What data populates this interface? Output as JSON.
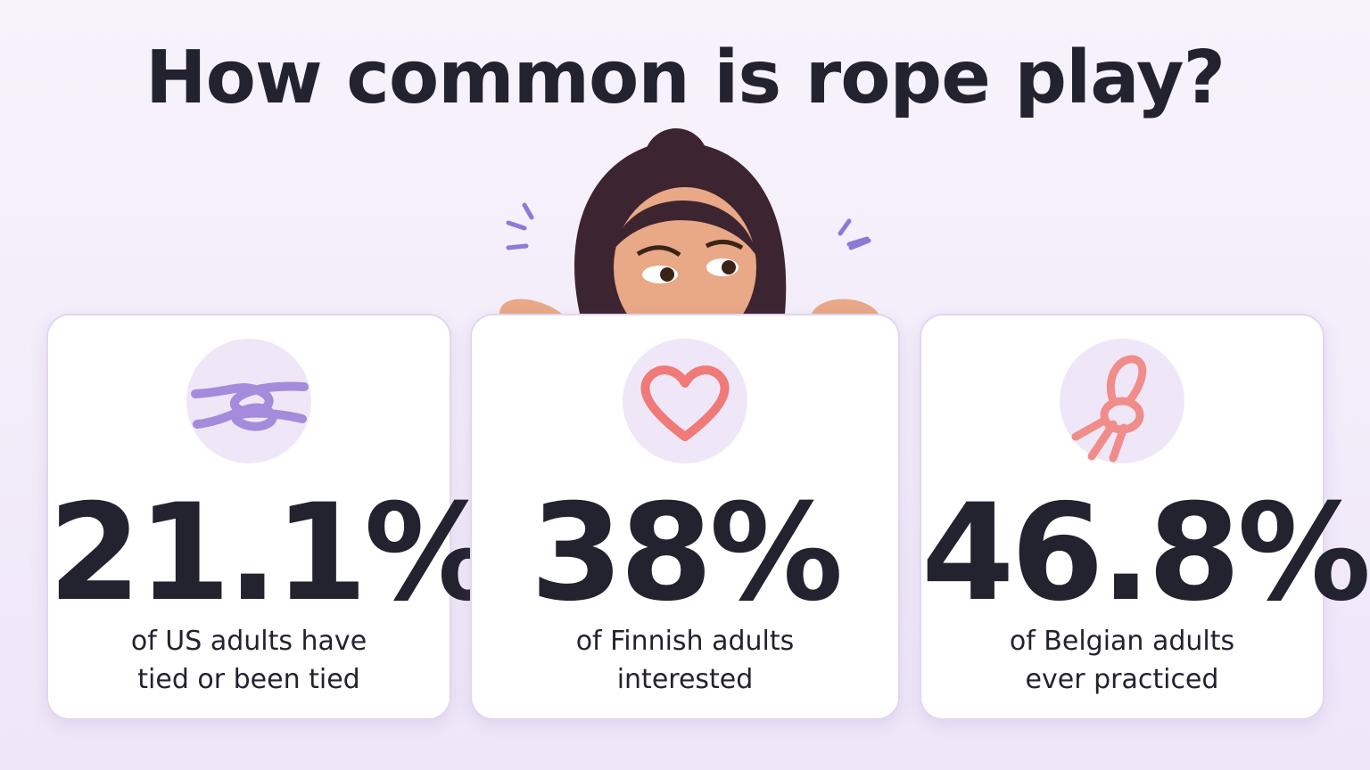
{
  "title": "How common is rope play?",
  "cards": [
    {
      "stat": "21.1%",
      "caption": [
        "of US adults have",
        "tied or been tied"
      ]
    },
    {
      "stat": "38%",
      "caption": [
        "of Finnish adults",
        "interested"
      ]
    },
    {
      "stat": "46.8%",
      "caption": [
        "of Belgian adults",
        "ever practiced"
      ]
    }
  ]
}
